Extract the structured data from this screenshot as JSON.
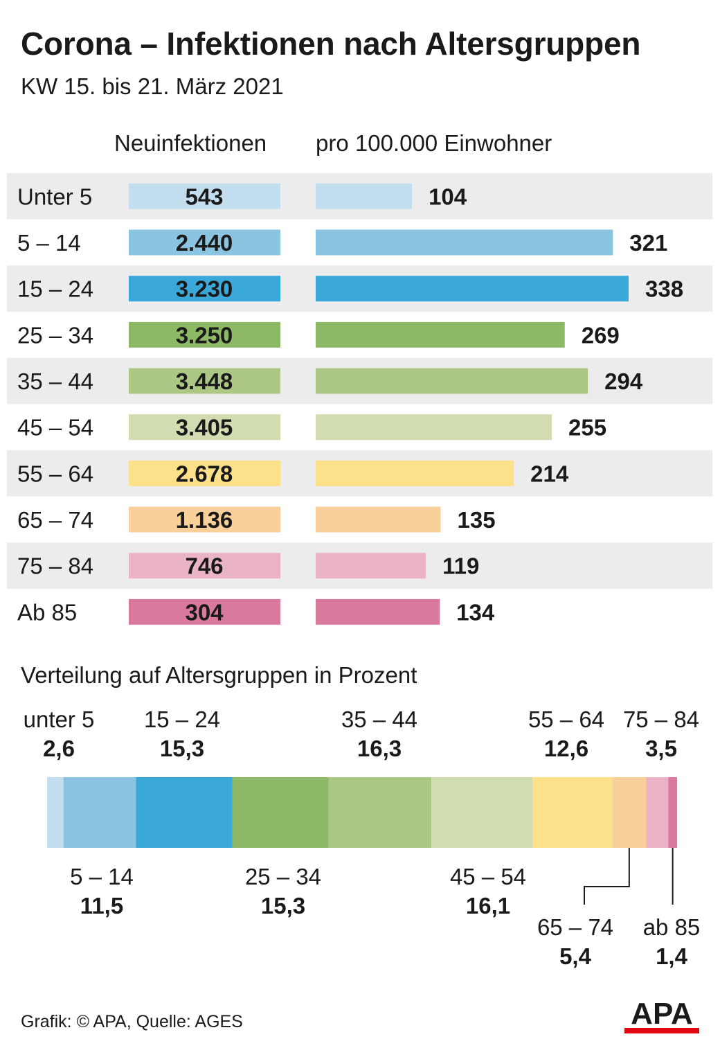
{
  "title": "Corona – Infektionen nach Altersgruppen",
  "subtitle": "KW 15. bis 21. März 2021",
  "column_left_header": "Neuinfektionen",
  "column_right_header": "pro 100.000 Einwohner",
  "distribution_header": "Verteilung auf Altersgruppen in Prozent",
  "source": "Grafik: © APA, Quelle: AGES",
  "logo_text": "APA",
  "colors": {
    "row_band": "#ececed",
    "text": "#1a1a1a",
    "logo_red": "#e30613"
  },
  "chart_data": [
    {
      "type": "bar",
      "orientation": "horizontal",
      "title": "Neuinfektionen / pro 100.000 Einwohner",
      "categories": [
        "Unter 5",
        "5 – 14",
        "15 – 24",
        "25 – 34",
        "35 – 44",
        "45 – 54",
        "55 – 64",
        "65 – 74",
        "75 – 84",
        "Ab 85"
      ],
      "colors": [
        "#c3deef",
        "#8bc4e1",
        "#3aa8d8",
        "#8db865",
        "#adc785",
        "#d1ddb1",
        "#fde08a",
        "#f9cf9a",
        "#eab3c8",
        "#d9799d"
      ],
      "series": [
        {
          "name": "Neuinfektionen",
          "labels": [
            "543",
            "2.440",
            "3.230",
            "3.250",
            "3.448",
            "3.405",
            "2.678",
            "1.136",
            "746",
            "304"
          ]
        },
        {
          "name": "pro 100.000 Einwohner",
          "values": [
            104,
            321,
            338,
            269,
            294,
            255,
            214,
            135,
            119,
            134
          ]
        }
      ]
    },
    {
      "type": "bar",
      "orientation": "stacked-100",
      "title": "Verteilung auf Altersgruppen in Prozent",
      "categories": [
        "unter 5",
        "5 – 14",
        "15 – 24",
        "25 – 34",
        "35 – 44",
        "45 – 54",
        "55 – 64",
        "65 – 74",
        "75 – 84",
        "ab 85"
      ],
      "values": [
        2.6,
        11.5,
        15.3,
        15.3,
        16.3,
        16.1,
        12.6,
        5.4,
        3.5,
        1.4
      ],
      "value_labels": [
        "2,6",
        "11,5",
        "15,3",
        "15,3",
        "16,3",
        "16,1",
        "12,6",
        "5,4",
        "3,5",
        "1,4"
      ],
      "colors": [
        "#c3deef",
        "#8bc4e1",
        "#3aa8d8",
        "#8db865",
        "#adc785",
        "#d1ddb1",
        "#fde08a",
        "#f9cf9a",
        "#eab3c8",
        "#d9799d"
      ]
    }
  ]
}
